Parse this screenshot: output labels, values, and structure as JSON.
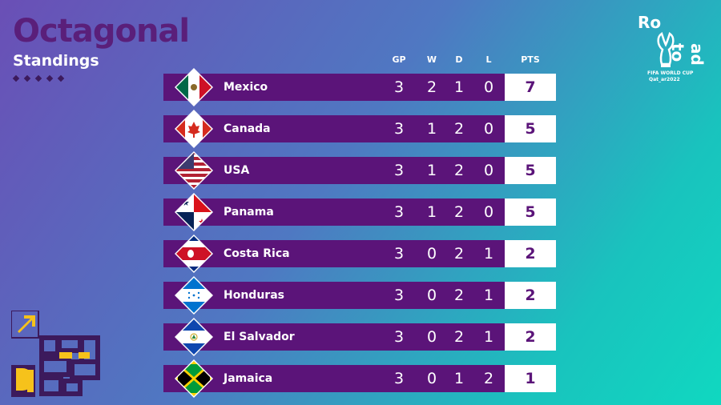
{
  "header": {
    "title": "Octagonal",
    "subtitle": "Standings"
  },
  "columns": {
    "gp": "GP",
    "w": "W",
    "d": "D",
    "l": "L",
    "pts": "PTS"
  },
  "logo": {
    "text_top": "Ro",
    "text_side": "ad to",
    "caption_line1": "FIFA WORLD CUP",
    "caption_line2": "Qat_ar2022"
  },
  "teams": [
    {
      "name": "Mexico",
      "gp": "3",
      "w": "2",
      "d": "1",
      "l": "0",
      "pts": "7",
      "flag": "mexico-flag"
    },
    {
      "name": "Canada",
      "gp": "3",
      "w": "1",
      "d": "2",
      "l": "0",
      "pts": "5",
      "flag": "canada-flag"
    },
    {
      "name": "USA",
      "gp": "3",
      "w": "1",
      "d": "2",
      "l": "0",
      "pts": "5",
      "flag": "usa-flag"
    },
    {
      "name": "Panama",
      "gp": "3",
      "w": "1",
      "d": "2",
      "l": "0",
      "pts": "5",
      "flag": "panama-flag"
    },
    {
      "name": "Costa Rica",
      "gp": "3",
      "w": "0",
      "d": "2",
      "l": "1",
      "pts": "2",
      "flag": "costa-rica-flag"
    },
    {
      "name": "Honduras",
      "gp": "3",
      "w": "0",
      "d": "2",
      "l": "1",
      "pts": "2",
      "flag": "honduras-flag"
    },
    {
      "name": "El Salvador",
      "gp": "3",
      "w": "0",
      "d": "2",
      "l": "1",
      "pts": "2",
      "flag": "el-salvador-flag"
    },
    {
      "name": "Jamaica",
      "gp": "3",
      "w": "0",
      "d": "1",
      "l": "2",
      "pts": "1",
      "flag": "jamaica-flag"
    }
  ],
  "colors": {
    "row_bg": "#5b1479",
    "title": "#5a1f7a",
    "pts_bg": "#ffffff"
  }
}
